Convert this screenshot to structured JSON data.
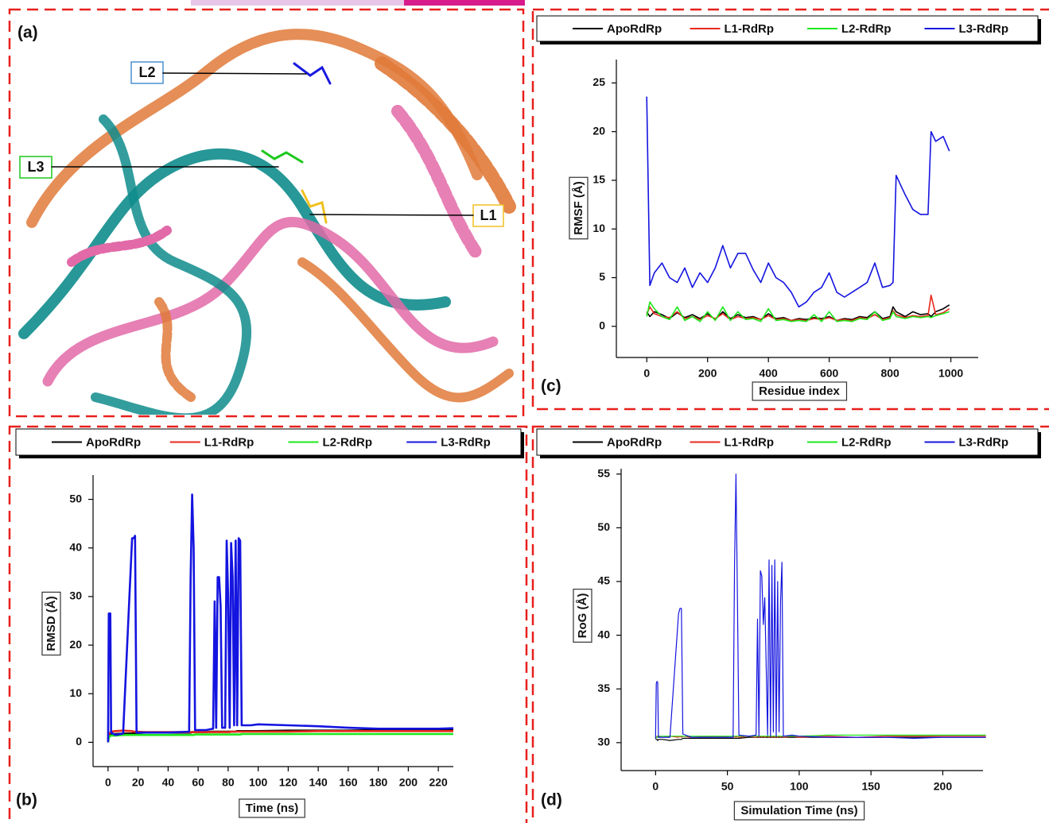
{
  "figure": {
    "panel_a": {
      "label": "(a)",
      "ligands": [
        "L1",
        "L2",
        "L3"
      ]
    }
  },
  "chart_data": [
    {
      "type": "line",
      "panel_label": "(c)",
      "x_label": "Residue index",
      "y_label": "RMSF (Å)",
      "x": [
        0,
        10,
        25,
        50,
        75,
        100,
        125,
        150,
        175,
        200,
        225,
        250,
        275,
        300,
        325,
        350,
        375,
        400,
        425,
        450,
        475,
        500,
        525,
        550,
        575,
        600,
        625,
        650,
        675,
        700,
        725,
        750,
        775,
        800,
        810,
        820,
        850,
        875,
        900,
        925,
        935,
        950,
        975,
        995
      ],
      "series": [
        {
          "name": "ApoRdRp",
          "color": "#000000",
          "values": [
            1.5,
            1,
            1.5,
            1.2,
            0.8,
            1.4,
            0.9,
            1.2,
            0.8,
            1.3,
            0.7,
            1.5,
            0.8,
            1.2,
            0.9,
            1,
            0.7,
            1.3,
            0.8,
            0.9,
            0.6,
            0.8,
            0.7,
            0.9,
            0.8,
            1,
            0.6,
            0.8,
            0.7,
            1,
            0.9,
            1.5,
            0.8,
            1,
            2,
            1.5,
            1,
            1.5,
            1.2,
            1.3,
            1,
            1.5,
            1.8,
            2.2
          ]
        },
        {
          "name": "L1-RdRp",
          "color": "#e8281c",
          "values": [
            1.2,
            2,
            1.3,
            1,
            0.9,
            1.5,
            0.8,
            1,
            0.7,
            1.1,
            0.8,
            1.3,
            0.7,
            1,
            0.8,
            0.9,
            0.7,
            1.1,
            0.7,
            0.8,
            0.6,
            0.7,
            0.6,
            0.8,
            0.7,
            0.9,
            0.6,
            0.7,
            0.6,
            0.9,
            0.8,
            1.2,
            0.7,
            0.9,
            1.6,
            1.2,
            0.9,
            1.1,
            1,
            1.1,
            3.2,
            1.2,
            1.4,
            1.8
          ]
        },
        {
          "name": "L2-RdRp",
          "color": "#1de81d",
          "values": [
            1,
            2.5,
            1.8,
            1,
            0.7,
            2,
            0.6,
            1,
            0.5,
            1.5,
            0.6,
            2,
            0.6,
            1.5,
            0.7,
            0.8,
            0.5,
            1.8,
            0.6,
            0.7,
            0.5,
            0.6,
            0.5,
            1.2,
            0.5,
            1.5,
            0.5,
            0.6,
            0.5,
            0.8,
            0.7,
            1.5,
            0.6,
            0.8,
            1.5,
            1,
            0.8,
            1,
            0.9,
            1,
            0.9,
            1.1,
            1.3,
            1.5
          ]
        },
        {
          "name": "L3-RdRp",
          "color": "#1414e0",
          "values": [
            23.6,
            4.2,
            5.5,
            6.5,
            5,
            4.5,
            6,
            4,
            5.5,
            4.5,
            6,
            8.3,
            6,
            7.5,
            7.5,
            5.8,
            4.5,
            6.5,
            5,
            4.5,
            3.5,
            2,
            2.5,
            3.5,
            4,
            5.5,
            3.5,
            3,
            3.5,
            4,
            4.5,
            6.5,
            4,
            4.2,
            4.5,
            15.5,
            13.5,
            12,
            11.5,
            11.5,
            20,
            19,
            19.5,
            18
          ]
        }
      ],
      "xlim": [
        -100,
        1090
      ],
      "xticks": [
        0,
        200,
        400,
        600,
        800,
        1000
      ],
      "ylim": [
        -3.2,
        27.4
      ],
      "yticks": [
        0,
        5,
        10,
        15,
        20,
        25
      ]
    },
    {
      "type": "line",
      "panel_label": "(b)",
      "x_label": "Time (ns)",
      "y_label": "RMSD (Å)",
      "x": [
        0,
        0.5,
        1,
        1.5,
        2,
        5,
        10,
        16,
        17,
        18,
        19,
        25,
        40,
        54,
        55,
        56,
        57,
        58,
        65,
        70,
        71,
        72,
        73,
        74,
        75,
        76,
        78,
        79,
        80,
        81,
        82,
        83,
        84,
        85,
        86,
        87,
        88,
        89,
        95,
        100,
        120,
        140,
        160,
        180,
        200,
        220,
        230
      ],
      "series": [
        {
          "name": "ApoRdRp",
          "color": "#000000",
          "values": [
            0,
            1.2,
            1.4,
            1.5,
            1.6,
            1.7,
            1.8,
            1.8,
            1.9,
            1.9,
            1.9,
            2,
            2,
            2,
            2,
            2.1,
            2.1,
            2.1,
            2.1,
            2.2,
            2.2,
            2.2,
            2.2,
            2.2,
            2.2,
            2.2,
            2.2,
            2.2,
            2.2,
            2.2,
            2.2,
            2.2,
            2.2,
            2.2,
            2.3,
            2.3,
            2.3,
            2.3,
            2.3,
            2.3,
            2.4,
            2.4,
            2.4,
            2.5,
            2.5,
            2.5,
            2.5
          ]
        },
        {
          "name": "L1-RdRp",
          "color": "#e8281c",
          "values": [
            0,
            1.5,
            1.8,
            2,
            2.2,
            2.3,
            2.4,
            2.3,
            2.2,
            2.2,
            2.2,
            2.1,
            2.1,
            2.1,
            2.1,
            2.1,
            2.1,
            2.1,
            2.1,
            2.1,
            2.1,
            2.1,
            2.1,
            2.1,
            2.1,
            2.1,
            2.1,
            2.1,
            2.1,
            2.1,
            2.2,
            2.2,
            2.2,
            2.2,
            2.2,
            2.2,
            2.2,
            2.2,
            2.2,
            2.2,
            2.2,
            2.3,
            2.3,
            2.3,
            2.3,
            2.3,
            2.3
          ]
        },
        {
          "name": "L2-RdRp",
          "color": "#1de81d",
          "values": [
            0,
            1,
            1.2,
            1.3,
            1.4,
            1.4,
            1.5,
            1.5,
            1.5,
            1.5,
            1.5,
            1.5,
            1.5,
            1.5,
            1.5,
            1.5,
            1.5,
            1.6,
            1.6,
            1.6,
            1.6,
            1.6,
            1.6,
            1.6,
            1.6,
            1.6,
            1.6,
            1.6,
            1.6,
            1.6,
            1.6,
            1.6,
            1.6,
            1.6,
            1.6,
            1.6,
            1.6,
            1.7,
            1.7,
            1.7,
            1.7,
            1.7,
            1.7,
            1.7,
            1.7,
            1.7,
            1.7
          ]
        },
        {
          "name": "L3-RdRp",
          "color": "#1414e0",
          "values": [
            0,
            26.5,
            26.5,
            26.5,
            2,
            1.5,
            1.8,
            42,
            42,
            42.5,
            2,
            2,
            2,
            2.2,
            34,
            51,
            40,
            2.5,
            2.5,
            2.8,
            29,
            3,
            34,
            34,
            28,
            3,
            3,
            41.5,
            30,
            3,
            41,
            34,
            3.5,
            41.5,
            3.5,
            42,
            41.5,
            3.5,
            3.5,
            3.7,
            3.5,
            3.3,
            3,
            2.8,
            2.8,
            2.8,
            2.9
          ]
        }
      ],
      "xlim": [
        -10,
        230
      ],
      "xticks": [
        0,
        20,
        40,
        60,
        80,
        100,
        120,
        140,
        160,
        180,
        200,
        220
      ],
      "ylim": [
        -5,
        55
      ],
      "yticks": [
        0,
        10,
        20,
        30,
        40,
        50
      ]
    },
    {
      "type": "line",
      "panel_label": "(d)",
      "x_label": "Simulation Time (ns)",
      "y_label": "RoG (Å)",
      "x": [
        0,
        0.5,
        1,
        1.5,
        2,
        5,
        10,
        16,
        17,
        18,
        19,
        25,
        40,
        54,
        55,
        56,
        57,
        58,
        65,
        70,
        71,
        72,
        73,
        74,
        75,
        76,
        78,
        79,
        80,
        81,
        82,
        83,
        84,
        85,
        86,
        87,
        88,
        89,
        95,
        100,
        120,
        140,
        160,
        180,
        200,
        220,
        230
      ],
      "series": [
        {
          "name": "ApoRdRp",
          "color": "#000000",
          "values": [
            30.4,
            30.3,
            30.3,
            30.2,
            30.3,
            30.3,
            30.2,
            30.3,
            30.3,
            30.3,
            30.4,
            30.4,
            30.4,
            30.4,
            30.4,
            30.4,
            30.4,
            30.4,
            30.5,
            30.5,
            30.5,
            30.5,
            30.5,
            30.5,
            30.5,
            30.5,
            30.5,
            30.5,
            30.5,
            30.5,
            30.5,
            30.5,
            30.5,
            30.5,
            30.5,
            30.5,
            30.5,
            30.5,
            30.5,
            30.5,
            30.5,
            30.5,
            30.5,
            30.5,
            30.5,
            30.5,
            30.5
          ]
        },
        {
          "name": "L1-RdRp",
          "color": "#e8281c",
          "values": [
            30.5,
            30.5,
            30.6,
            30.5,
            30.6,
            30.5,
            30.6,
            30.5,
            30.6,
            30.5,
            30.6,
            30.5,
            30.6,
            30.5,
            30.6,
            30.5,
            30.6,
            30.5,
            30.6,
            30.5,
            30.6,
            30.5,
            30.6,
            30.5,
            30.6,
            30.5,
            30.6,
            30.5,
            30.6,
            30.5,
            30.6,
            30.5,
            30.6,
            30.5,
            30.6,
            30.5,
            30.6,
            30.5,
            30.6,
            30.5,
            30.6,
            30.5,
            30.6,
            30.6,
            30.6,
            30.6,
            30.6
          ]
        },
        {
          "name": "L2-RdRp",
          "color": "#1de81d",
          "values": [
            30.4,
            30.5,
            30.5,
            30.6,
            30.6,
            30.6,
            30.6,
            30.6,
            30.6,
            30.6,
            30.6,
            30.6,
            30.6,
            30.6,
            30.6,
            30.6,
            30.6,
            30.6,
            30.6,
            30.6,
            30.6,
            30.6,
            30.6,
            30.6,
            30.6,
            30.6,
            30.6,
            30.6,
            30.6,
            30.6,
            30.6,
            30.6,
            30.6,
            30.6,
            30.6,
            30.6,
            30.6,
            30.6,
            30.6,
            30.6,
            30.7,
            30.7,
            30.7,
            30.7,
            30.7,
            30.7,
            30.7
          ]
        },
        {
          "name": "L3-RdRp",
          "color": "#1414e0",
          "values": [
            30.4,
            35.5,
            35.7,
            35.6,
            30.5,
            30.5,
            30.5,
            42,
            42.5,
            42.5,
            30.8,
            30.5,
            30.5,
            30.5,
            46.5,
            55,
            43,
            30.7,
            30.6,
            30.7,
            41.5,
            30.6,
            46,
            45.5,
            41,
            43.5,
            30.7,
            47,
            30.6,
            46.5,
            31,
            47,
            30.6,
            45,
            31,
            43,
            46.8,
            30.6,
            30.7,
            30.6,
            30.5,
            30.5,
            30.5,
            30.4,
            30.5,
            30.5,
            30.5
          ]
        }
      ],
      "xlim": [
        -24,
        228
      ],
      "xticks": [
        0,
        50,
        100,
        150,
        200
      ],
      "ylim": [
        27.4,
        55.5
      ],
      "yticks": [
        30,
        35,
        40,
        45,
        50,
        55
      ]
    }
  ]
}
